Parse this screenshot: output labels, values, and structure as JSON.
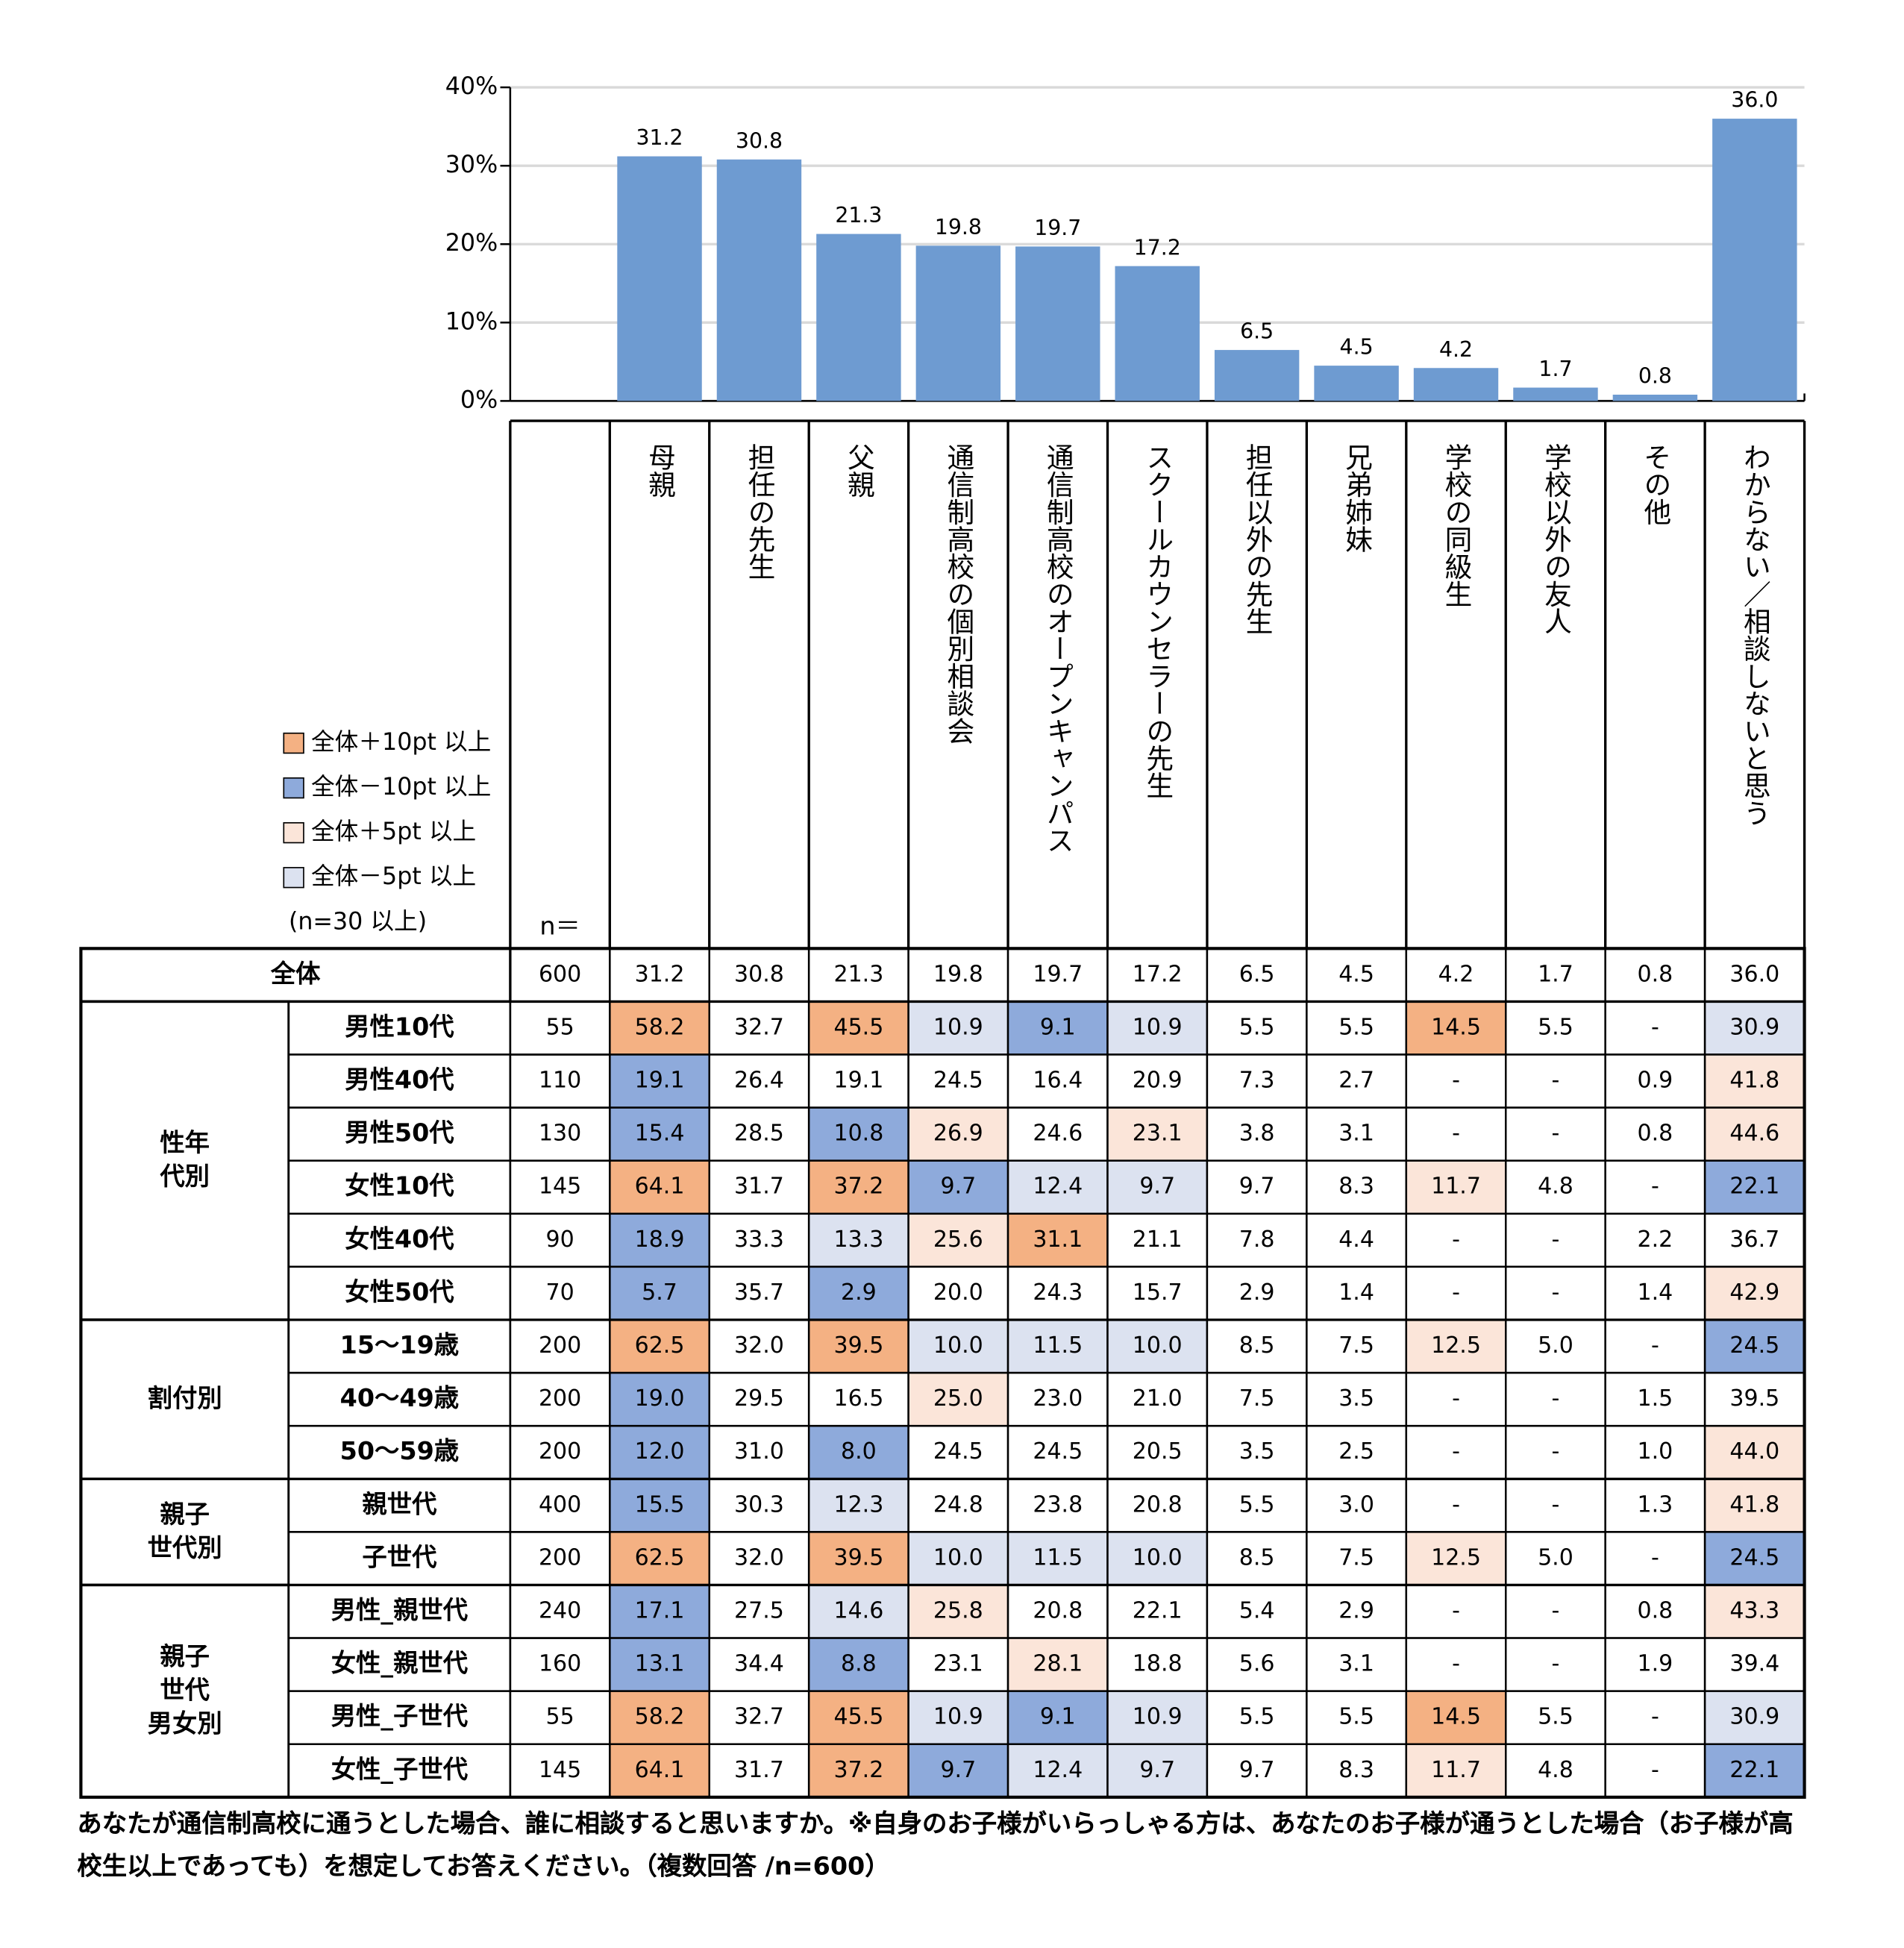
{
  "chart_data": {
    "type": "bar",
    "categories": [
      "母親",
      "担任の先生",
      "父親",
      "通信制高校の個別相談会",
      "通信制高校のオープンキャンパス",
      "スクールカウンセラーの先生",
      "担任以外の先生",
      "兄弟姉妹",
      "学校の同級生",
      "学校以外の友人",
      "その他",
      "わからない／相談しないと思う"
    ],
    "values": [
      31.2,
      30.8,
      21.3,
      19.8,
      19.7,
      17.2,
      6.5,
      4.5,
      4.2,
      1.7,
      0.8,
      36.0
    ],
    "value_labels": [
      "31.2",
      "30.8",
      "21.3",
      "19.8",
      "19.7",
      "17.2",
      "6.5",
      "4.5",
      "4.2",
      "1.7",
      "0.8",
      "36.0"
    ],
    "color": "#6e9bd1",
    "ylim": [
      0,
      40
    ],
    "yticks": [
      {
        "value": 0,
        "label": "0%"
      },
      {
        "value": 10,
        "label": "10%"
      },
      {
        "value": 20,
        "label": "20%"
      },
      {
        "value": 30,
        "label": "30%"
      },
      {
        "value": 40,
        "label": "40%"
      }
    ],
    "grid": true
  },
  "legend": {
    "items": [
      {
        "label": "全体＋10pt 以上",
        "color": "#f4b183"
      },
      {
        "label": "全体－10pt 以上",
        "color": "#8eaadb"
      },
      {
        "label": "全体＋5pt 以上",
        "color": "#fbe5d9"
      },
      {
        "label": "全体－5pt 以上",
        "color": "#dce2f0"
      }
    ],
    "note": "(n=30 以上)"
  },
  "table": {
    "n_header": "n＝",
    "overall": {
      "label": "全体",
      "n": "600",
      "values": [
        "31.2",
        "30.8",
        "21.3",
        "19.8",
        "19.7",
        "17.2",
        "6.5",
        "4.5",
        "4.2",
        "1.7",
        "0.8",
        "36.0"
      ]
    },
    "groups": [
      {
        "lines": [
          "性年",
          "代別"
        ],
        "rows": [
          {
            "label": "男性10代",
            "n": "55",
            "values": [
              "58.2",
              "32.7",
              "45.5",
              "10.9",
              "9.1",
              "10.9",
              "5.5",
              "5.5",
              "14.5",
              "5.5",
              "-",
              "30.9"
            ],
            "shade": [
              0,
              null,
              0,
              3,
              1,
              3,
              null,
              null,
              0,
              null,
              null,
              3
            ]
          },
          {
            "label": "男性40代",
            "n": "110",
            "values": [
              "19.1",
              "26.4",
              "19.1",
              "24.5",
              "16.4",
              "20.9",
              "7.3",
              "2.7",
              "-",
              "-",
              "0.9",
              "41.8"
            ],
            "shade": [
              1,
              null,
              null,
              null,
              null,
              null,
              null,
              null,
              null,
              null,
              null,
              2
            ]
          },
          {
            "label": "男性50代",
            "n": "130",
            "values": [
              "15.4",
              "28.5",
              "10.8",
              "26.9",
              "24.6",
              "23.1",
              "3.8",
              "3.1",
              "-",
              "-",
              "0.8",
              "44.6"
            ],
            "shade": [
              1,
              null,
              1,
              2,
              null,
              2,
              null,
              null,
              null,
              null,
              null,
              2
            ]
          },
          {
            "label": "女性10代",
            "n": "145",
            "values": [
              "64.1",
              "31.7",
              "37.2",
              "9.7",
              "12.4",
              "9.7",
              "9.7",
              "8.3",
              "11.7",
              "4.8",
              "-",
              "22.1"
            ],
            "shade": [
              0,
              null,
              0,
              1,
              3,
              3,
              null,
              null,
              2,
              null,
              null,
              1
            ]
          },
          {
            "label": "女性40代",
            "n": "90",
            "values": [
              "18.9",
              "33.3",
              "13.3",
              "25.6",
              "31.1",
              "21.1",
              "7.8",
              "4.4",
              "-",
              "-",
              "2.2",
              "36.7"
            ],
            "shade": [
              1,
              null,
              3,
              2,
              0,
              null,
              null,
              null,
              null,
              null,
              null,
              null
            ]
          },
          {
            "label": "女性50代",
            "n": "70",
            "values": [
              "5.7",
              "35.7",
              "2.9",
              "20.0",
              "24.3",
              "15.7",
              "2.9",
              "1.4",
              "-",
              "-",
              "1.4",
              "42.9"
            ],
            "shade": [
              1,
              null,
              1,
              null,
              null,
              null,
              null,
              null,
              null,
              null,
              null,
              2
            ]
          }
        ]
      },
      {
        "lines": [
          "割付別"
        ],
        "rows": [
          {
            "label": "15～19歳",
            "n": "200",
            "values": [
              "62.5",
              "32.0",
              "39.5",
              "10.0",
              "11.5",
              "10.0",
              "8.5",
              "7.5",
              "12.5",
              "5.0",
              "-",
              "24.5"
            ],
            "shade": [
              0,
              null,
              0,
              3,
              3,
              3,
              null,
              null,
              2,
              null,
              null,
              1
            ]
          },
          {
            "label": "40～49歳",
            "n": "200",
            "values": [
              "19.0",
              "29.5",
              "16.5",
              "25.0",
              "23.0",
              "21.0",
              "7.5",
              "3.5",
              "-",
              "-",
              "1.5",
              "39.5"
            ],
            "shade": [
              1,
              null,
              null,
              2,
              null,
              null,
              null,
              null,
              null,
              null,
              null,
              null
            ]
          },
          {
            "label": "50～59歳",
            "n": "200",
            "values": [
              "12.0",
              "31.0",
              "8.0",
              "24.5",
              "24.5",
              "20.5",
              "3.5",
              "2.5",
              "-",
              "-",
              "1.0",
              "44.0"
            ],
            "shade": [
              1,
              null,
              1,
              null,
              null,
              null,
              null,
              null,
              null,
              null,
              null,
              2
            ]
          }
        ]
      },
      {
        "lines": [
          "親子",
          "世代別"
        ],
        "rows": [
          {
            "label": "親世代",
            "n": "400",
            "values": [
              "15.5",
              "30.3",
              "12.3",
              "24.8",
              "23.8",
              "20.8",
              "5.5",
              "3.0",
              "-",
              "-",
              "1.3",
              "41.8"
            ],
            "shade": [
              1,
              null,
              3,
              null,
              null,
              null,
              null,
              null,
              null,
              null,
              null,
              2
            ]
          },
          {
            "label": "子世代",
            "n": "200",
            "values": [
              "62.5",
              "32.0",
              "39.5",
              "10.0",
              "11.5",
              "10.0",
              "8.5",
              "7.5",
              "12.5",
              "5.0",
              "-",
              "24.5"
            ],
            "shade": [
              0,
              null,
              0,
              3,
              3,
              3,
              null,
              null,
              2,
              null,
              null,
              1
            ]
          }
        ]
      },
      {
        "lines": [
          "親子",
          "世代",
          "男女別"
        ],
        "rows": [
          {
            "label": "男性_親世代",
            "n": "240",
            "values": [
              "17.1",
              "27.5",
              "14.6",
              "25.8",
              "20.8",
              "22.1",
              "5.4",
              "2.9",
              "-",
              "-",
              "0.8",
              "43.3"
            ],
            "shade": [
              1,
              null,
              3,
              2,
              null,
              null,
              null,
              null,
              null,
              null,
              null,
              2
            ]
          },
          {
            "label": "女性_親世代",
            "n": "160",
            "values": [
              "13.1",
              "34.4",
              "8.8",
              "23.1",
              "28.1",
              "18.8",
              "5.6",
              "3.1",
              "-",
              "-",
              "1.9",
              "39.4"
            ],
            "shade": [
              1,
              null,
              1,
              null,
              2,
              null,
              null,
              null,
              null,
              null,
              null,
              null
            ]
          },
          {
            "label": "男性_子世代",
            "n": "55",
            "values": [
              "58.2",
              "32.7",
              "45.5",
              "10.9",
              "9.1",
              "10.9",
              "5.5",
              "5.5",
              "14.5",
              "5.5",
              "-",
              "30.9"
            ],
            "shade": [
              0,
              null,
              0,
              3,
              1,
              3,
              null,
              null,
              0,
              null,
              null,
              3
            ]
          },
          {
            "label": "女性_子世代",
            "n": "145",
            "values": [
              "64.1",
              "31.7",
              "37.2",
              "9.7",
              "12.4",
              "9.7",
              "9.7",
              "8.3",
              "11.7",
              "4.8",
              "-",
              "22.1"
            ],
            "shade": [
              0,
              null,
              0,
              1,
              3,
              3,
              null,
              null,
              2,
              null,
              null,
              1
            ]
          }
        ]
      }
    ]
  },
  "footnote": "あなたが通信制高校に通うとした場合、誰に相談すると思いますか。※自身のお子様がいらっしゃる方は、あなたのお子様が通うとした場合（お子様が高校生以上であっても）を想定してお答えください。（複数回答 /n=600）"
}
